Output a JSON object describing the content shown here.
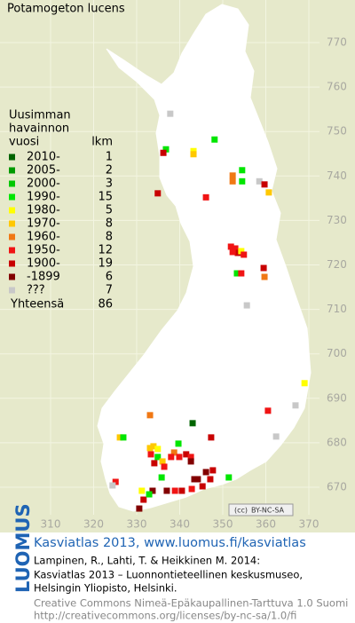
{
  "title": "Potamogeton lucens",
  "legend": {
    "header": [
      "Uusimman",
      "havainnon",
      "vuosi"
    ],
    "count_header": "lkm",
    "rows": [
      {
        "label": "2010-",
        "count": 1,
        "color": "#006400"
      },
      {
        "label": "2005-",
        "count": 2,
        "color": "#009a00"
      },
      {
        "label": "2000-",
        "count": 3,
        "color": "#00c800"
      },
      {
        "label": "1990-",
        "count": 15,
        "color": "#00e600"
      },
      {
        "label": "1980-",
        "count": 5,
        "color": "#ffff00"
      },
      {
        "label": "1970-",
        "count": 8,
        "color": "#ffc800"
      },
      {
        "label": "1960-",
        "count": 8,
        "color": "#f07814"
      },
      {
        "label": "1950-",
        "count": 12,
        "color": "#f01414"
      },
      {
        "label": "1900-",
        "count": 19,
        "color": "#c80000"
      },
      {
        "label": "-1899",
        "count": 6,
        "color": "#820000"
      },
      {
        "label": "???",
        "count": 7,
        "color": "#c8c8c8"
      }
    ],
    "total_label": "Yhteensä",
    "total": 86
  },
  "xticks": [
    310,
    320,
    330,
    340,
    350,
    360,
    370
  ],
  "yticks": [
    670,
    680,
    690,
    700,
    710,
    720,
    730,
    740,
    750,
    760,
    770
  ],
  "records": [
    [
      337.8,
      754.0,
      10
    ],
    [
      348.1,
      748.2,
      3
    ],
    [
      336.8,
      746.0,
      3
    ],
    [
      336.2,
      745.2,
      8
    ],
    [
      343.2,
      745.6,
      4
    ],
    [
      343.2,
      744.9,
      5
    ],
    [
      354.5,
      741.3,
      3
    ],
    [
      352.3,
      740.1,
      6
    ],
    [
      352.3,
      738.8,
      6
    ],
    [
      354.5,
      738.8,
      3
    ],
    [
      358.5,
      738.8,
      10
    ],
    [
      359.7,
      738.1,
      8
    ],
    [
      360.7,
      736.3,
      5
    ],
    [
      334.9,
      736.1,
      8
    ],
    [
      346.1,
      735.2,
      7
    ],
    [
      351.9,
      724.1,
      7
    ],
    [
      352.9,
      723.7,
      7
    ],
    [
      353.5,
      722.7,
      8
    ],
    [
      354.3,
      723.1,
      4
    ],
    [
      354.9,
      722.3,
      7
    ],
    [
      352.3,
      722.9,
      7
    ],
    [
      359.5,
      719.3,
      8
    ],
    [
      353.3,
      718.1,
      3
    ],
    [
      354.3,
      718.1,
      7
    ],
    [
      359.7,
      717.3,
      6
    ],
    [
      355.6,
      710.9,
      10
    ],
    [
      369.0,
      693.4,
      4
    ],
    [
      366.9,
      688.4,
      10
    ],
    [
      360.5,
      687.2,
      7
    ],
    [
      343.0,
      684.4,
      0
    ],
    [
      333.1,
      686.2,
      6
    ],
    [
      326.1,
      681.2,
      5
    ],
    [
      326.9,
      681.2,
      3
    ],
    [
      347.3,
      681.2,
      8
    ],
    [
      362.4,
      681.4,
      10
    ],
    [
      333.1,
      678.8,
      5
    ],
    [
      333.9,
      679.2,
      5
    ],
    [
      334.9,
      678.6,
      4
    ],
    [
      333.3,
      677.4,
      7
    ],
    [
      334.9,
      676.8,
      3
    ],
    [
      334.1,
      675.4,
      8
    ],
    [
      336.0,
      675.8,
      5
    ],
    [
      336.4,
      674.6,
      7
    ],
    [
      339.7,
      679.8,
      3
    ],
    [
      338.7,
      677.8,
      6
    ],
    [
      338.0,
      676.8,
      7
    ],
    [
      339.9,
      676.8,
      7
    ],
    [
      341.5,
      677.4,
      8
    ],
    [
      342.6,
      676.8,
      7
    ],
    [
      342.6,
      675.8,
      9
    ],
    [
      347.7,
      673.8,
      8
    ],
    [
      346.1,
      673.4,
      9
    ],
    [
      343.4,
      671.8,
      9
    ],
    [
      344.2,
      671.8,
      9
    ],
    [
      347.1,
      671.8,
      8
    ],
    [
      335.8,
      672.2,
      3
    ],
    [
      325.1,
      671.2,
      7
    ],
    [
      324.4,
      670.4,
      10
    ],
    [
      351.4,
      672.2,
      3
    ],
    [
      331.2,
      669.2,
      4
    ],
    [
      333.7,
      669.2,
      9
    ],
    [
      337.0,
      669.2,
      9
    ],
    [
      338.9,
      669.2,
      7
    ],
    [
      340.5,
      669.2,
      8
    ],
    [
      342.8,
      669.6,
      7
    ],
    [
      345.3,
      670.2,
      8
    ],
    [
      330.6,
      665.2,
      9
    ],
    [
      331.6,
      667.2,
      8
    ],
    [
      332.9,
      668.4,
      3
    ]
  ],
  "license_badge": "BY-NC-SA",
  "footer": {
    "brand": "LUOMUS",
    "headline": "Kasviatlas 2013, www.luomus.fi/kasviatlas",
    "citation": [
      "Lampinen, R., Lahti, T. & Heikkinen M. 2014:",
      "Kasviatlas 2013 – Luonnontieteellinen keskusmuseo,",
      "Helsingin Yliopisto, Helsinki."
    ],
    "license": [
      "Creative Commons Nimeä-Epäkaupallinen-Tarttuva 1.0 Suomi",
      "http://creativecommons.org/licenses/by-nc-sa/1.0/fi"
    ]
  }
}
